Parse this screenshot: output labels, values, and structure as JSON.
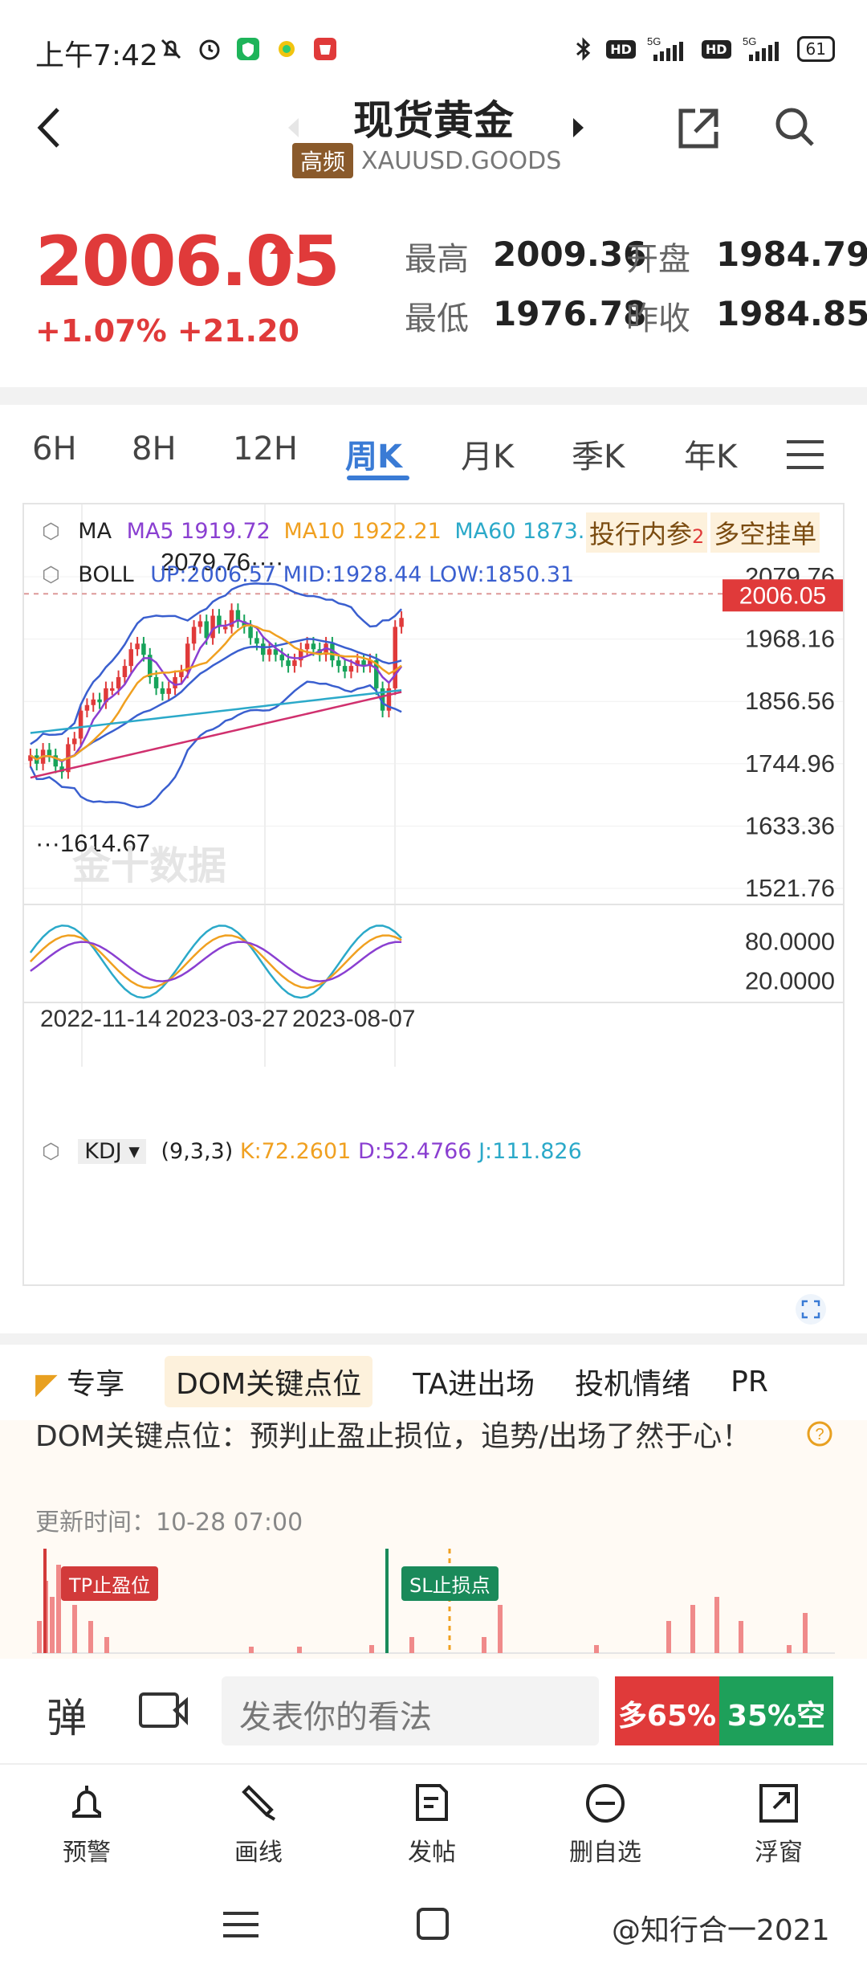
{
  "status_bar": {
    "time": "上午7:42",
    "battery": "61",
    "network": "5G"
  },
  "header": {
    "title": "现货黄金",
    "badge": "高频",
    "symbol": "XAUUSD.GOODS"
  },
  "quote": {
    "price": "2006.05",
    "change_pct": "+1.07%",
    "change_abs": "+21.20",
    "high_label": "最高",
    "high": "2009.36",
    "open_label": "开盘",
    "open": "1984.79",
    "low_label": "最低",
    "low": "1976.78",
    "prev_label": "昨收",
    "prev": "1984.85"
  },
  "tabs": [
    "6H",
    "8H",
    "12H",
    "周K",
    "月K",
    "季K",
    "年K"
  ],
  "active_tab": "周K",
  "chart": {
    "ma_label": "MA",
    "ma5": "MA5 1919.72",
    "ma10": "MA10 1922.21",
    "ma60": "MA60 1873.35",
    "tag1": "投行内参",
    "tag_num": "2",
    "tag2": "多空挂单",
    "boll_label": "BOLL",
    "boll_vals": "UP:2006.57 MID:1928.44 LOW:1850.31",
    "high_marker": "2079.76",
    "low_marker": "1614.67",
    "current_price": "2006.05",
    "kdj_label": "KDJ",
    "kdj_params": "(9,3,3)",
    "kdj_k": "K:72.2601",
    "kdj_d": "D:52.4766",
    "kdj_j": "J:111.826",
    "watermark": "金十数据",
    "colors": {
      "up": "#e03a3a",
      "down": "#17a35a",
      "ma5": "#8a3fd1",
      "ma10": "#f0a020",
      "ma60": "#2ba9c9",
      "ma_long": "#d0306e",
      "boll": "#3a5fcf"
    }
  },
  "chart_data": {
    "type": "line",
    "y_ticks": [
      "2079.76",
      "1968.16",
      "1856.56",
      "1744.96",
      "1633.36",
      "1521.76"
    ],
    "kdj_ticks": [
      "80.0000",
      "20.0000"
    ],
    "x_labels": [
      "2022-11-14",
      "2023-03-27",
      "2023-08-07"
    ],
    "ylim": [
      1521.76,
      2079.76
    ],
    "closes": [
      1760,
      1745,
      1770,
      1760,
      1740,
      1730,
      1780,
      1790,
      1840,
      1850,
      1860,
      1855,
      1880,
      1880,
      1900,
      1920,
      1950,
      1960,
      1940,
      1900,
      1880,
      1870,
      1880,
      1900,
      1910,
      1960,
      1990,
      2000,
      1970,
      2010,
      1990,
      1990,
      2020,
      2000,
      1990,
      1970,
      1960,
      1940,
      1950,
      1940,
      1930,
      1920,
      1930,
      1950,
      1960,
      1950,
      1940,
      1960,
      1930,
      1920,
      1910,
      1920,
      1930,
      1920,
      1930,
      1880,
      1840,
      1880,
      1990,
      2006
    ],
    "up": [
      2006.57
    ],
    "mid": [
      1928.44
    ],
    "low": [
      1850.31
    ]
  },
  "lower": {
    "chips": [
      "专享",
      "DOM关键点位",
      "TA进出场",
      "投机情绪",
      "PR"
    ],
    "dom_title": "DOM关键点位：预判止盈止损位，追势/出场了然于心！",
    "update_time": "更新时间：10-28 07:00",
    "tp_label": "TP止盈位",
    "sl_label": "SL止损点"
  },
  "comment_bar": {
    "placeholder": "发表你的看法",
    "bull": "多65%",
    "bear": "35%空"
  },
  "nav": [
    "预警",
    "画线",
    "发帖",
    "删自选",
    "浮窗"
  ],
  "watermark_bottom": "@知行合一2021"
}
